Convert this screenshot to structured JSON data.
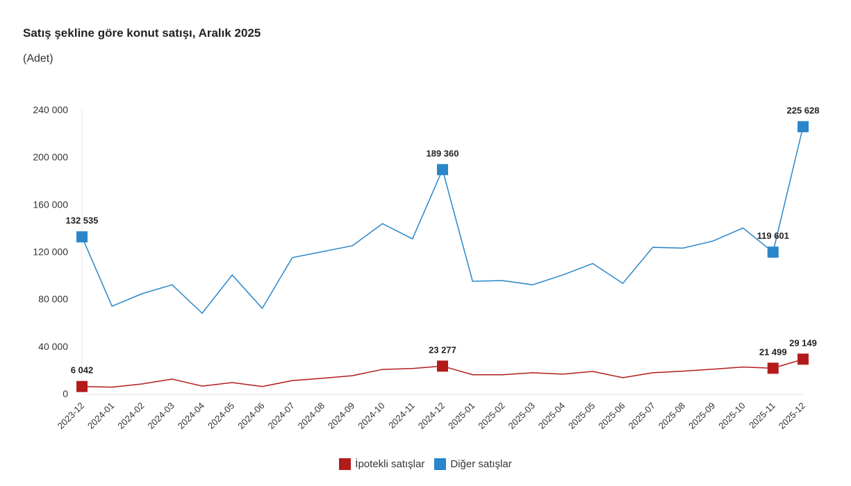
{
  "chart_data": {
    "type": "line",
    "title": "Satış şekline göre konut satışı, Aralık 2025",
    "subtitle": "(Adet)",
    "xlabel": "",
    "ylabel": "",
    "ylim": [
      0,
      240000
    ],
    "yticks": [
      0,
      40000,
      80000,
      120000,
      160000,
      200000,
      240000
    ],
    "ytick_labels": [
      "0",
      "40 000",
      "80 000",
      "120 000",
      "160 000",
      "200 000",
      "240 000"
    ],
    "grid": false,
    "legend_position": "bottom",
    "categories": [
      "2023-12",
      "2024-01",
      "2024-02",
      "2024-03",
      "2024-04",
      "2024-05",
      "2024-06",
      "2024-07",
      "2024-08",
      "2024-09",
      "2024-10",
      "2024-11",
      "2024-12",
      "2025-01",
      "2025-02",
      "2025-03",
      "2025-04",
      "2025-05",
      "2025-06",
      "2025-07",
      "2025-08",
      "2025-09",
      "2025-10",
      "2025-11",
      "2025-12"
    ],
    "series": [
      {
        "name": "İpotekli satışlar",
        "color": "#b31b1b",
        "values": [
          6042,
          5500,
          8200,
          12300,
          6400,
          9400,
          6000,
          11100,
          13000,
          15200,
          20500,
          21300,
          23277,
          16000,
          16000,
          17700,
          16500,
          18800,
          13500,
          17700,
          19000,
          20700,
          22500,
          21499,
          29149
        ],
        "labeled": [
          {
            "index": 0,
            "label": "6 042"
          },
          {
            "index": 12,
            "label": "23 277"
          },
          {
            "index": 23,
            "label": "21 499"
          },
          {
            "index": 24,
            "label": "29 149"
          }
        ]
      },
      {
        "name": "Diğer satışlar",
        "color": "#2a86c9",
        "values": [
          132535,
          73900,
          84500,
          92000,
          68000,
          100300,
          72100,
          115000,
          120000,
          125000,
          143700,
          130800,
          189360,
          95000,
          95600,
          92000,
          100300,
          110000,
          93200,
          123700,
          123000,
          129000,
          140000,
          119601,
          225628
        ],
        "labeled": [
          {
            "index": 0,
            "label": "132 535"
          },
          {
            "index": 12,
            "label": "189 360"
          },
          {
            "index": 23,
            "label": "119 601"
          },
          {
            "index": 24,
            "label": "225 628"
          }
        ]
      }
    ]
  }
}
